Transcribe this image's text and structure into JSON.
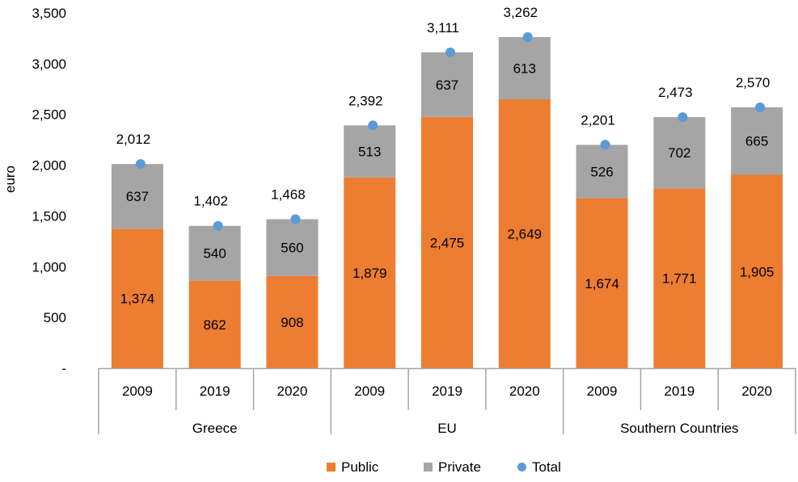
{
  "chart_data": {
    "type": "bar",
    "stacked": true,
    "ylabel": "euro",
    "ylim": [
      0,
      3500
    ],
    "yticks": [
      0,
      500,
      1000,
      1500,
      2000,
      2500,
      3000,
      3500
    ],
    "ytick_labels": [
      "-",
      "500",
      "1,000",
      "1,500",
      "2,000",
      "2,500",
      "3,000",
      "3,500"
    ],
    "groups": [
      {
        "name": "Greece",
        "years": [
          "2009",
          "2019",
          "2020"
        ]
      },
      {
        "name": "EU",
        "years": [
          "2009",
          "2019",
          "2020"
        ]
      },
      {
        "name": "Southern Countries",
        "years": [
          "2009",
          "2019",
          "2020"
        ]
      }
    ],
    "series": [
      {
        "name": "Public",
        "color": "#ED7D31",
        "values": [
          1374,
          862,
          908,
          1879,
          2475,
          2649,
          1674,
          1771,
          1905
        ],
        "labels": [
          "1,374",
          "862",
          "908",
          "1,879",
          "2,475",
          "2,649",
          "1,674",
          "1,771",
          "1,905"
        ]
      },
      {
        "name": "Private",
        "color": "#A5A5A5",
        "values": [
          637,
          540,
          560,
          513,
          637,
          613,
          526,
          702,
          665
        ],
        "labels": [
          "637",
          "540",
          "560",
          "513",
          "637",
          "613",
          "526",
          "702",
          "665"
        ]
      },
      {
        "name": "Total",
        "color": "#5B9BD5",
        "marker": "dot",
        "values": [
          2012,
          1402,
          1468,
          2392,
          3111,
          3262,
          2201,
          2473,
          2570
        ],
        "labels": [
          "2,012",
          "1,402",
          "1,468",
          "2,392",
          "3,111",
          "3,262",
          "2,201",
          "2,473",
          "2,570"
        ]
      }
    ],
    "legend_position": "bottom",
    "grid": false
  }
}
